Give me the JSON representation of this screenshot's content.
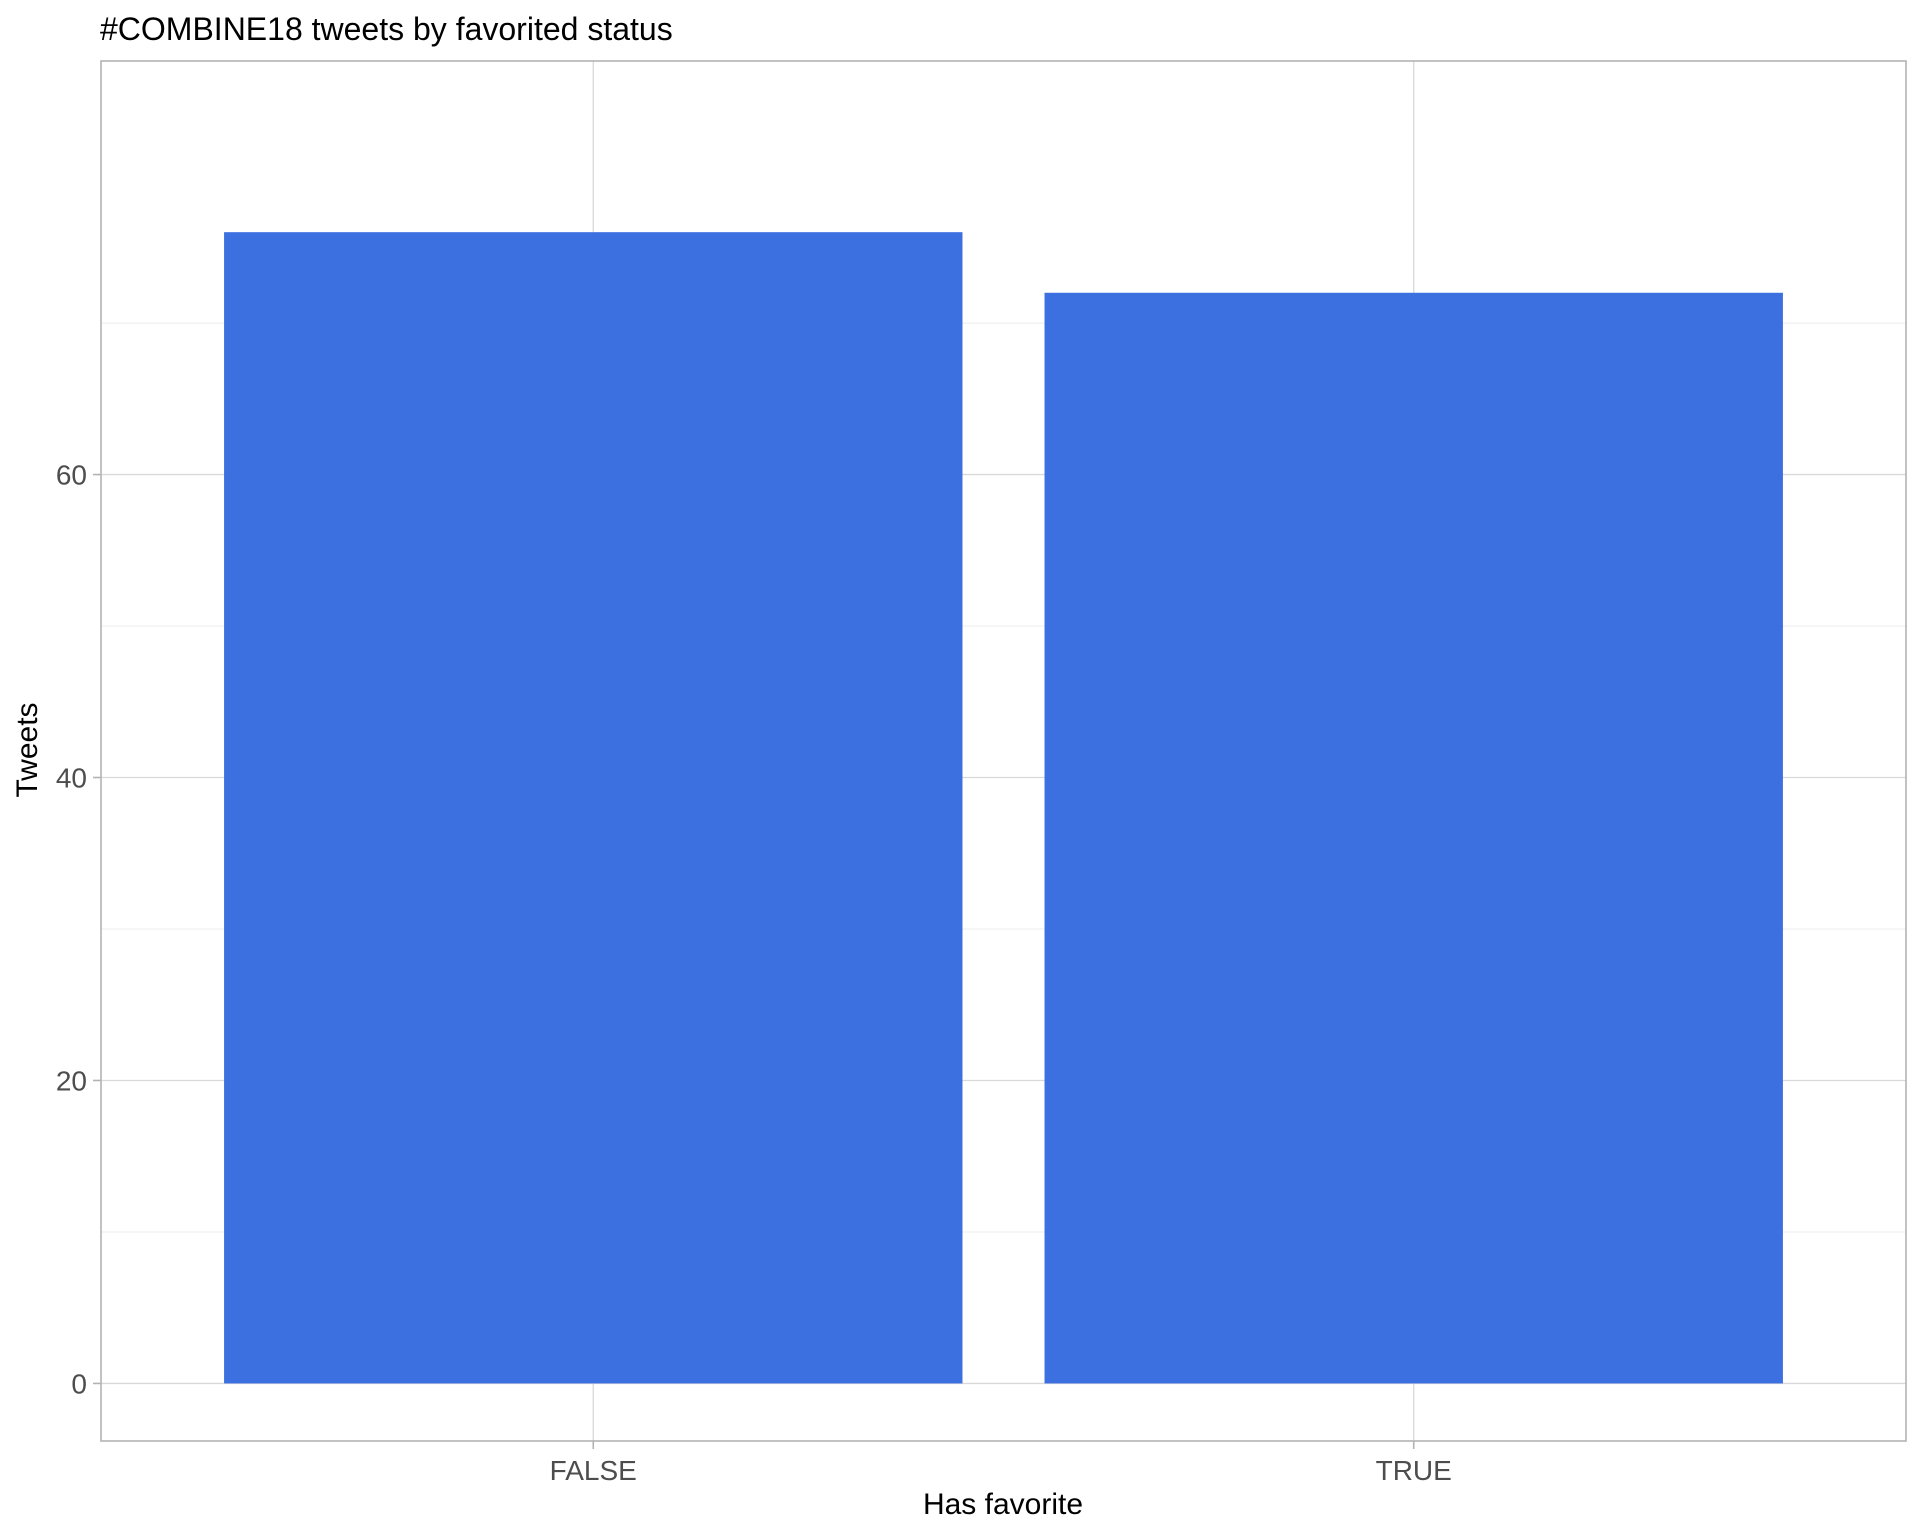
{
  "chart_data": {
    "type": "bar",
    "title": "#COMBINE18 tweets by favorited status",
    "xlabel": "Has favorite",
    "ylabel": "Tweets",
    "categories": [
      "FALSE",
      "TRUE"
    ],
    "values": [
      76,
      72
    ],
    "ylim": [
      -3.8,
      87.3
    ],
    "yticks": [
      0,
      20,
      40,
      60
    ],
    "grid": true,
    "bar_color": "#3c70e0",
    "legend": "none"
  }
}
